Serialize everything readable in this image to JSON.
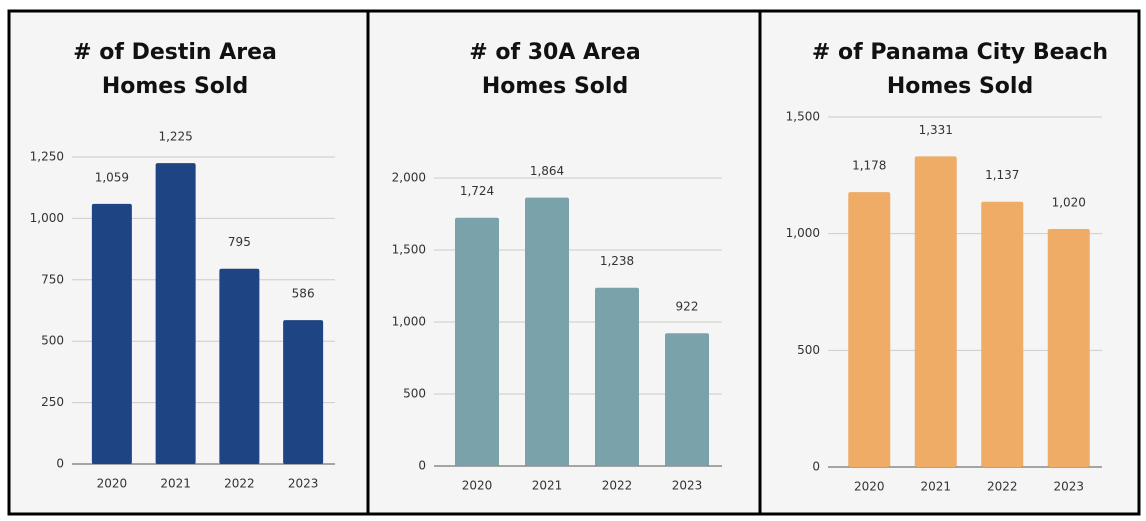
{
  "chart_data": [
    {
      "type": "bar",
      "title": "# of Destin Area Homes Sold",
      "categories": [
        "2020",
        "2021",
        "2022",
        "2023"
      ],
      "values": [
        1059,
        1225,
        795,
        586
      ],
      "value_labels": [
        "1,059",
        "1,225",
        "795",
        "586"
      ],
      "color": "#1f4483",
      "ylim": [
        0,
        1250
      ],
      "yticks": [
        0,
        250,
        500,
        750,
        {
          "value": 1000,
          "label": "1,000"
        },
        {
          "value": 1250,
          "label": "1,250"
        }
      ],
      "grid": true
    },
    {
      "type": "bar",
      "title": "# of 30A Area Homes Sold",
      "categories": [
        "2020",
        "2021",
        "2022",
        "2023"
      ],
      "values": [
        1724,
        1864,
        1238,
        922
      ],
      "value_labels": [
        "1,724",
        "1,864",
        "1,238",
        "922"
      ],
      "color": "#79a2ab",
      "ylim": [
        0,
        2000
      ],
      "yticks": [
        0,
        500,
        {
          "value": 1000,
          "label": "1,000"
        },
        {
          "value": 1500,
          "label": "1,500"
        },
        {
          "value": 2000,
          "label": "2,000"
        }
      ],
      "grid": true
    },
    {
      "type": "bar",
      "title": "# of Panama City Beach Homes Sold",
      "categories": [
        "2020",
        "2021",
        "2022",
        "2023"
      ],
      "values": [
        1178,
        1331,
        1137,
        1020
      ],
      "value_labels": [
        "1,178",
        "1,331",
        "1,137",
        "1,020"
      ],
      "color": "#eeac67",
      "ylim": [
        0,
        1500
      ],
      "yticks": [
        0,
        500,
        {
          "value": 1000,
          "label": "1,000"
        },
        {
          "value": 1500,
          "label": "1,500"
        }
      ],
      "grid": true
    }
  ]
}
